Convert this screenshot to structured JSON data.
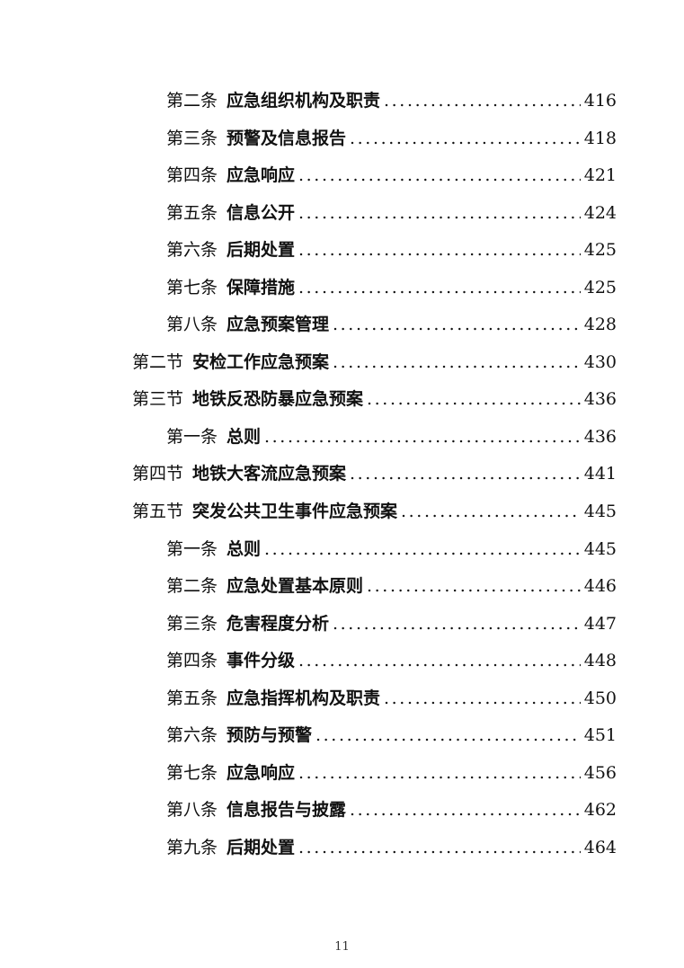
{
  "document": {
    "kind": "table-of-contents-page",
    "toc_entries": [
      {
        "level": 2,
        "label": "第二条",
        "title": "应急组织机构及职责",
        "page": "416"
      },
      {
        "level": 2,
        "label": "第三条",
        "title": "预警及信息报告",
        "page": "418"
      },
      {
        "level": 2,
        "label": "第四条",
        "title": "应急响应",
        "page": "421"
      },
      {
        "level": 2,
        "label": "第五条",
        "title": "信息公开",
        "page": "424"
      },
      {
        "level": 2,
        "label": "第六条",
        "title": "后期处置",
        "page": "425"
      },
      {
        "level": 2,
        "label": "第七条",
        "title": "保障措施",
        "page": "425"
      },
      {
        "level": 2,
        "label": "第八条",
        "title": "应急预案管理",
        "page": "428"
      },
      {
        "level": 1,
        "label": "第二节",
        "title": "安检工作应急预案",
        "page": "430"
      },
      {
        "level": 1,
        "label": "第三节",
        "title": "地铁反恐防暴应急预案",
        "page": "436"
      },
      {
        "level": 2,
        "label": "第一条",
        "title": "总则",
        "page": "436"
      },
      {
        "level": 1,
        "label": "第四节",
        "title": "地铁大客流应急预案",
        "page": "441"
      },
      {
        "level": 1,
        "label": "第五节",
        "title": "突发公共卫生事件应急预案",
        "page": "445"
      },
      {
        "level": 2,
        "label": "第一条",
        "title": "总则",
        "page": "445"
      },
      {
        "level": 2,
        "label": "第二条",
        "title": "应急处置基本原则",
        "page": "446"
      },
      {
        "level": 2,
        "label": "第三条",
        "title": "危害程度分析",
        "page": "447"
      },
      {
        "level": 2,
        "label": "第四条",
        "title": "事件分级",
        "page": "448"
      },
      {
        "level": 2,
        "label": "第五条",
        "title": "应急指挥机构及职责",
        "page": "450"
      },
      {
        "level": 2,
        "label": "第六条",
        "title": "预防与预警",
        "page": "451"
      },
      {
        "level": 2,
        "label": "第七条",
        "title": "应急响应",
        "page": "456"
      },
      {
        "level": 2,
        "label": "第八条",
        "title": "信息报告与披露",
        "page": "462"
      },
      {
        "level": 2,
        "label": "第九条",
        "title": "后期处置",
        "page": "464"
      }
    ],
    "footer": {
      "page_number": "11"
    }
  },
  "colors": {
    "background": "#ffffff",
    "text": "#111111",
    "footer_text": "#333333"
  }
}
